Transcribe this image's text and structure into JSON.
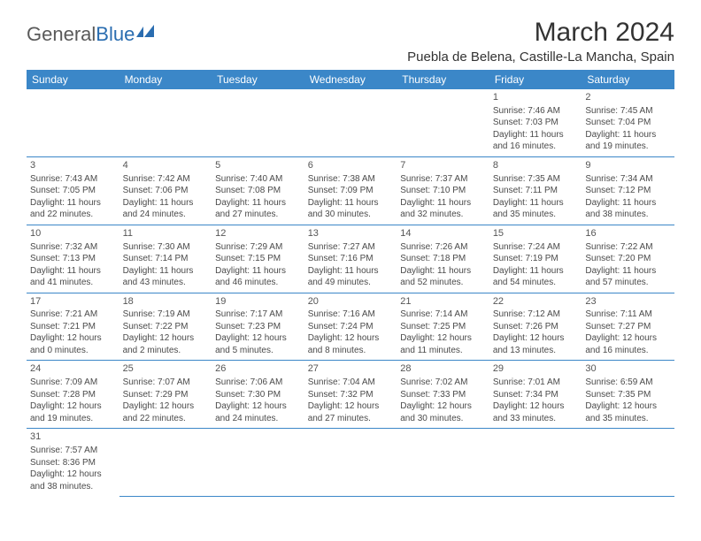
{
  "brand": {
    "part1": "General",
    "part2": "Blue"
  },
  "title": "March 2024",
  "location": "Puebla de Belena, Castille-La Mancha, Spain",
  "header_bg": "#3b87c8",
  "header_fg": "#ffffff",
  "border_color": "#3b87c8",
  "text_color": "#4a4a4a",
  "daynum_color": "#555555",
  "dayHeaders": [
    "Sunday",
    "Monday",
    "Tuesday",
    "Wednesday",
    "Thursday",
    "Friday",
    "Saturday"
  ],
  "weeks": [
    [
      null,
      null,
      null,
      null,
      null,
      {
        "n": "1",
        "sr": "7:46 AM",
        "ss": "7:03 PM",
        "dl": "11 hours and 16 minutes."
      },
      {
        "n": "2",
        "sr": "7:45 AM",
        "ss": "7:04 PM",
        "dl": "11 hours and 19 minutes."
      }
    ],
    [
      {
        "n": "3",
        "sr": "7:43 AM",
        "ss": "7:05 PM",
        "dl": "11 hours and 22 minutes."
      },
      {
        "n": "4",
        "sr": "7:42 AM",
        "ss": "7:06 PM",
        "dl": "11 hours and 24 minutes."
      },
      {
        "n": "5",
        "sr": "7:40 AM",
        "ss": "7:08 PM",
        "dl": "11 hours and 27 minutes."
      },
      {
        "n": "6",
        "sr": "7:38 AM",
        "ss": "7:09 PM",
        "dl": "11 hours and 30 minutes."
      },
      {
        "n": "7",
        "sr": "7:37 AM",
        "ss": "7:10 PM",
        "dl": "11 hours and 32 minutes."
      },
      {
        "n": "8",
        "sr": "7:35 AM",
        "ss": "7:11 PM",
        "dl": "11 hours and 35 minutes."
      },
      {
        "n": "9",
        "sr": "7:34 AM",
        "ss": "7:12 PM",
        "dl": "11 hours and 38 minutes."
      }
    ],
    [
      {
        "n": "10",
        "sr": "7:32 AM",
        "ss": "7:13 PM",
        "dl": "11 hours and 41 minutes."
      },
      {
        "n": "11",
        "sr": "7:30 AM",
        "ss": "7:14 PM",
        "dl": "11 hours and 43 minutes."
      },
      {
        "n": "12",
        "sr": "7:29 AM",
        "ss": "7:15 PM",
        "dl": "11 hours and 46 minutes."
      },
      {
        "n": "13",
        "sr": "7:27 AM",
        "ss": "7:16 PM",
        "dl": "11 hours and 49 minutes."
      },
      {
        "n": "14",
        "sr": "7:26 AM",
        "ss": "7:18 PM",
        "dl": "11 hours and 52 minutes."
      },
      {
        "n": "15",
        "sr": "7:24 AM",
        "ss": "7:19 PM",
        "dl": "11 hours and 54 minutes."
      },
      {
        "n": "16",
        "sr": "7:22 AM",
        "ss": "7:20 PM",
        "dl": "11 hours and 57 minutes."
      }
    ],
    [
      {
        "n": "17",
        "sr": "7:21 AM",
        "ss": "7:21 PM",
        "dl": "12 hours and 0 minutes."
      },
      {
        "n": "18",
        "sr": "7:19 AM",
        "ss": "7:22 PM",
        "dl": "12 hours and 2 minutes."
      },
      {
        "n": "19",
        "sr": "7:17 AM",
        "ss": "7:23 PM",
        "dl": "12 hours and 5 minutes."
      },
      {
        "n": "20",
        "sr": "7:16 AM",
        "ss": "7:24 PM",
        "dl": "12 hours and 8 minutes."
      },
      {
        "n": "21",
        "sr": "7:14 AM",
        "ss": "7:25 PM",
        "dl": "12 hours and 11 minutes."
      },
      {
        "n": "22",
        "sr": "7:12 AM",
        "ss": "7:26 PM",
        "dl": "12 hours and 13 minutes."
      },
      {
        "n": "23",
        "sr": "7:11 AM",
        "ss": "7:27 PM",
        "dl": "12 hours and 16 minutes."
      }
    ],
    [
      {
        "n": "24",
        "sr": "7:09 AM",
        "ss": "7:28 PM",
        "dl": "12 hours and 19 minutes."
      },
      {
        "n": "25",
        "sr": "7:07 AM",
        "ss": "7:29 PM",
        "dl": "12 hours and 22 minutes."
      },
      {
        "n": "26",
        "sr": "7:06 AM",
        "ss": "7:30 PM",
        "dl": "12 hours and 24 minutes."
      },
      {
        "n": "27",
        "sr": "7:04 AM",
        "ss": "7:32 PM",
        "dl": "12 hours and 27 minutes."
      },
      {
        "n": "28",
        "sr": "7:02 AM",
        "ss": "7:33 PM",
        "dl": "12 hours and 30 minutes."
      },
      {
        "n": "29",
        "sr": "7:01 AM",
        "ss": "7:34 PM",
        "dl": "12 hours and 33 minutes."
      },
      {
        "n": "30",
        "sr": "6:59 AM",
        "ss": "7:35 PM",
        "dl": "12 hours and 35 minutes."
      }
    ],
    [
      {
        "n": "31",
        "sr": "7:57 AM",
        "ss": "8:36 PM",
        "dl": "12 hours and 38 minutes."
      },
      null,
      null,
      null,
      null,
      null,
      null
    ]
  ]
}
